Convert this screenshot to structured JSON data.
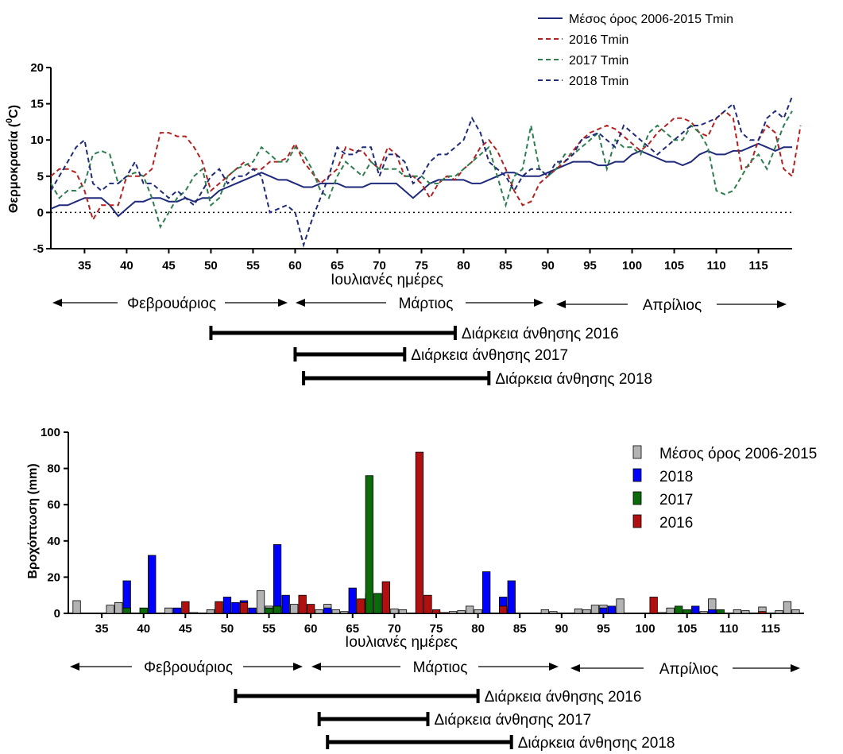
{
  "chart_data": [
    {
      "type": "line",
      "xlabel": "Ιουλιανές ημέρες",
      "ylabel": "Θερμοκρασία (0C)",
      "ylabel_main": "Θερμοκρασία (",
      "ylabel_sup": "0",
      "ylabel_end": "C)",
      "xlim": [
        31,
        119
      ],
      "ylim": [
        -5,
        20
      ],
      "xticks": [
        35,
        40,
        45,
        50,
        55,
        60,
        65,
        70,
        75,
        80,
        85,
        90,
        95,
        100,
        105,
        110,
        115
      ],
      "yticks": [
        -5,
        0,
        5,
        10,
        15,
        20
      ],
      "reference_line": 0,
      "legend_position": "top-right",
      "x_start": 31,
      "series": [
        {
          "name": "Μέσος όρος 2006-2015 Tmin",
          "color": "#1f2a7a",
          "style": "solid",
          "values": [
            0.5,
            1,
            1,
            1.5,
            2,
            2,
            2,
            1,
            -0.5,
            0.5,
            1.5,
            1.5,
            2,
            2,
            1.5,
            1.5,
            2,
            1.5,
            2,
            2,
            3,
            3.5,
            4,
            4.5,
            5,
            5.5,
            5,
            4.5,
            4.5,
            4,
            3.5,
            3.5,
            4,
            4,
            4,
            3.5,
            3.5,
            3.5,
            4,
            4,
            4,
            4,
            3,
            2,
            3,
            4,
            4.5,
            4.5,
            4.5,
            4.5,
            4,
            4,
            4.5,
            5,
            5.5,
            5.5,
            5,
            5,
            5,
            5.5,
            6,
            6.5,
            7,
            7,
            7,
            6.5,
            6.5,
            7,
            7,
            8,
            8.5,
            8,
            7.5,
            7,
            7,
            6.5,
            7,
            8,
            8.5,
            8,
            8,
            8.5,
            8.5,
            9,
            9.5,
            9,
            8.5,
            9,
            9
          ]
        },
        {
          "name": "2016 Tmin",
          "color": "#b22222",
          "style": "dashed",
          "values": [
            5,
            6,
            6,
            5.5,
            3,
            -1,
            1,
            1,
            1,
            5,
            5,
            5,
            6,
            11,
            11,
            10.5,
            10.5,
            9,
            7,
            3,
            4,
            5,
            6,
            7,
            6,
            6,
            7,
            7,
            7.5,
            9.5,
            7,
            5.5,
            4,
            5,
            6,
            9,
            8.5,
            8.5,
            7,
            6,
            9,
            8,
            5,
            5,
            4,
            2,
            4,
            5,
            4.5,
            6,
            7,
            9,
            10,
            8.5,
            6,
            3,
            1,
            1.5,
            4,
            5,
            6,
            7,
            8.5,
            10,
            11,
            11.5,
            12,
            11.5,
            10.5,
            9.5,
            8.5,
            9.5,
            11,
            12,
            13,
            13,
            12.5,
            11,
            10.5,
            13,
            14,
            13,
            6,
            6.5,
            10,
            12,
            11,
            6,
            5,
            12
          ]
        },
        {
          "name": "2017 Tmin",
          "color": "#2e7d4f",
          "style": "dashed",
          "values": [
            4,
            2,
            3,
            3,
            4,
            8,
            8.5,
            8,
            4,
            5,
            5.5,
            5,
            2,
            -2,
            0,
            2,
            3,
            5,
            6,
            1,
            2,
            5,
            6,
            6.5,
            7,
            9,
            8,
            7,
            7,
            9,
            8,
            6,
            3,
            2,
            5,
            7,
            6,
            5,
            7,
            6,
            6,
            6,
            5,
            5,
            5,
            4,
            4,
            5,
            5,
            6,
            7,
            8,
            9,
            5,
            1,
            5,
            6,
            12,
            6,
            5,
            6,
            8,
            8,
            9,
            10,
            11,
            6,
            10,
            9,
            9,
            8,
            11,
            12,
            11,
            10,
            10,
            12,
            11,
            9,
            3,
            2.5,
            3,
            5,
            7,
            8,
            6,
            9,
            12,
            14
          ]
        },
        {
          "name": "2018 Tmin",
          "color": "#1f2a7a",
          "style": "dashed",
          "values": [
            3,
            5,
            7,
            9,
            10,
            4,
            3,
            4,
            4,
            5,
            7,
            4,
            4,
            3,
            2,
            3,
            2,
            1,
            3,
            5,
            6,
            4,
            5,
            5,
            6,
            5,
            0,
            0.5,
            1,
            0,
            -4.5,
            -1,
            2,
            5,
            9,
            8,
            8,
            9,
            9,
            5,
            8,
            8,
            7,
            4,
            5,
            7,
            8,
            8,
            9,
            10,
            13,
            11,
            7,
            6,
            5,
            3,
            5,
            6,
            6,
            5,
            7,
            7,
            8,
            10,
            10.5,
            11,
            10,
            9,
            12,
            11,
            10,
            9,
            8,
            9,
            10,
            11,
            12,
            12,
            12.5,
            13,
            14,
            15,
            11,
            10,
            10,
            13,
            14,
            13,
            16
          ]
        }
      ]
    },
    {
      "type": "bar",
      "xlabel": "Ιουλιανές ημέρες",
      "ylabel": "Βροχόπτωση (mm)",
      "xlim": [
        31,
        119
      ],
      "ylim": [
        0,
        100
      ],
      "xticks": [
        35,
        40,
        45,
        50,
        55,
        60,
        65,
        70,
        75,
        80,
        85,
        90,
        95,
        100,
        105,
        110,
        115
      ],
      "yticks": [
        0,
        20,
        40,
        60,
        80,
        100
      ],
      "legend_position": "top-right",
      "series": [
        {
          "name": "Μέσος όρος 2006-2015",
          "color": "#b3b3b3",
          "points": [
            [
              32,
              7
            ],
            [
              36,
              4.5
            ],
            [
              37,
              6
            ],
            [
              43,
              3
            ],
            [
              46,
              0.5
            ],
            [
              48,
              2
            ],
            [
              49,
              2.5
            ],
            [
              54,
              12.5
            ],
            [
              55,
              4
            ],
            [
              58,
              5
            ],
            [
              61,
              2
            ],
            [
              62,
              5
            ],
            [
              63,
              2
            ],
            [
              64,
              1
            ],
            [
              67,
              11
            ],
            [
              70,
              2.5
            ],
            [
              71,
              2
            ],
            [
              75,
              1
            ],
            [
              77,
              1
            ],
            [
              78,
              1.5
            ],
            [
              79,
              4
            ],
            [
              80,
              2
            ],
            [
              84,
              2
            ],
            [
              88,
              2
            ],
            [
              89,
              1
            ],
            [
              92,
              2.5
            ],
            [
              93,
              2
            ],
            [
              94,
              4.5
            ],
            [
              95,
              4.5
            ],
            [
              97,
              8
            ],
            [
              102,
              0.5
            ],
            [
              103,
              3
            ],
            [
              105,
              2
            ],
            [
              107,
              1
            ],
            [
              108,
              8
            ],
            [
              111,
              2
            ],
            [
              112,
              1.5
            ],
            [
              114,
              3.5
            ],
            [
              116,
              1.5
            ],
            [
              117,
              6.5
            ],
            [
              118,
              2
            ]
          ]
        },
        {
          "name": "2018",
          "color": "#0000ff",
          "points": [
            [
              38,
              18
            ],
            [
              41,
              32
            ],
            [
              44,
              3
            ],
            [
              50,
              9
            ],
            [
              51,
              6
            ],
            [
              52,
              7
            ],
            [
              53,
              3
            ],
            [
              56,
              38
            ],
            [
              57,
              10
            ],
            [
              62,
              3
            ],
            [
              65,
              14
            ],
            [
              66,
              0.5
            ],
            [
              67,
              10
            ],
            [
              81,
              23
            ],
            [
              83,
              9
            ],
            [
              84,
              18
            ],
            [
              95,
              3
            ],
            [
              96,
              4
            ],
            [
              106,
              4
            ],
            [
              108,
              2
            ]
          ]
        },
        {
          "name": "2017",
          "color": "#0b6b0b",
          "points": [
            [
              38,
              3
            ],
            [
              40,
              3
            ],
            [
              55,
              3
            ],
            [
              56,
              4
            ],
            [
              67,
              76
            ],
            [
              68,
              11
            ],
            [
              104,
              4
            ],
            [
              105,
              2
            ],
            [
              109,
              2
            ]
          ]
        },
        {
          "name": "2016",
          "color": "#b01010",
          "points": [
            [
              45,
              6.5
            ],
            [
              49,
              6.5
            ],
            [
              52,
              6
            ],
            [
              59,
              10
            ],
            [
              60,
              5
            ],
            [
              66,
              8
            ],
            [
              69,
              17.5
            ],
            [
              73,
              89
            ],
            [
              74,
              10
            ],
            [
              75,
              2
            ],
            [
              76,
              0.5
            ],
            [
              83,
              4
            ],
            [
              101,
              9
            ],
            [
              114,
              1
            ]
          ]
        }
      ]
    }
  ],
  "months_top": [
    "Φεβρουάριος",
    "Μάρτιος",
    "Απρίλιος"
  ],
  "months_bottom": [
    "Φεβρουάριος",
    "Μάρτιος",
    "Απρίλιος"
  ],
  "bloom_top": [
    {
      "label": "Διάρκεια άνθησης 2016",
      "start": 50,
      "end": 79
    },
    {
      "label": "Διάρκεια άνθησης 2017",
      "start": 60,
      "end": 73
    },
    {
      "label": "Διάρκεια άνθησης 2018",
      "start": 61,
      "end": 83
    }
  ],
  "bloom_bottom": [
    {
      "label": "Διάρκεια άνθησης 2016",
      "start": 51,
      "end": 80
    },
    {
      "label": "Διάρκεια άνθησης 2017",
      "start": 61,
      "end": 74
    },
    {
      "label": "Διάρκεια άνθησης 2018",
      "start": 62,
      "end": 84
    }
  ]
}
